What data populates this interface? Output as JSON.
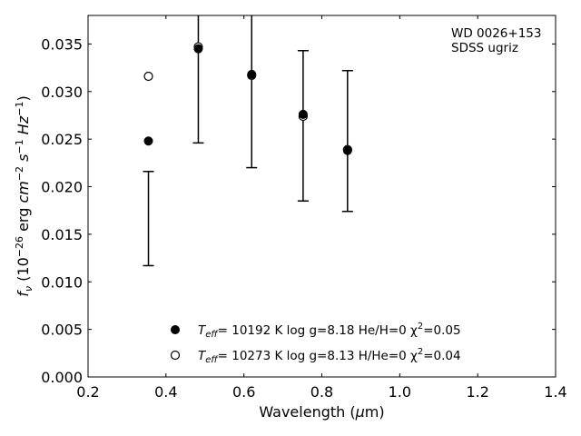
{
  "chart_data": {
    "type": "scatter",
    "xlabel": "Wavelength (μm)",
    "ylabel": "f_ν (10^-26 erg cm^-2 s^-1 Hz^-1)",
    "xlim": [
      0.2,
      1.4
    ],
    "ylim": [
      0.0,
      0.038
    ],
    "x_ticks": [
      "0.2",
      "0.4",
      "0.6",
      "0.8",
      "1.0",
      "1.2",
      "1.4"
    ],
    "y_ticks": [
      "0.000",
      "0.005",
      "0.010",
      "0.015",
      "0.020",
      "0.025",
      "0.030",
      "0.035"
    ],
    "annotation_lines": [
      "WD 0026+153",
      "SDSS ugriz"
    ],
    "observed": {
      "x": [
        0.355,
        0.483,
        0.62,
        0.752,
        0.866
      ],
      "y_low": [
        0.0117,
        0.0246,
        0.022,
        0.0185,
        0.0174
      ],
      "y_high": [
        0.0216,
        0.038,
        0.038,
        0.0343,
        0.0322
      ]
    },
    "series": [
      {
        "legend": {
          "prefix": "T",
          "sub": "eff",
          "text": "= 10192 K  log g=8.18  He/H=0  χ",
          "sup": "2",
          "tail": "=0.05"
        },
        "marker": "filled",
        "x": [
          0.355,
          0.483,
          0.62,
          0.752,
          0.866
        ],
        "y": [
          0.0248,
          0.0345,
          0.0318,
          0.0276,
          0.0238
        ]
      },
      {
        "legend": {
          "prefix": "T",
          "sub": "eff",
          "text": "= 10273 K  log g=8.13  H/He=0  χ",
          "sup": "2",
          "tail": "=0.04"
        },
        "marker": "open",
        "x": [
          0.355,
          0.483,
          0.62,
          0.752,
          0.866
        ],
        "y": [
          0.0316,
          0.0347,
          0.0317,
          0.0274,
          0.0239
        ]
      }
    ],
    "grid": false,
    "legend_position": "lower-center"
  }
}
